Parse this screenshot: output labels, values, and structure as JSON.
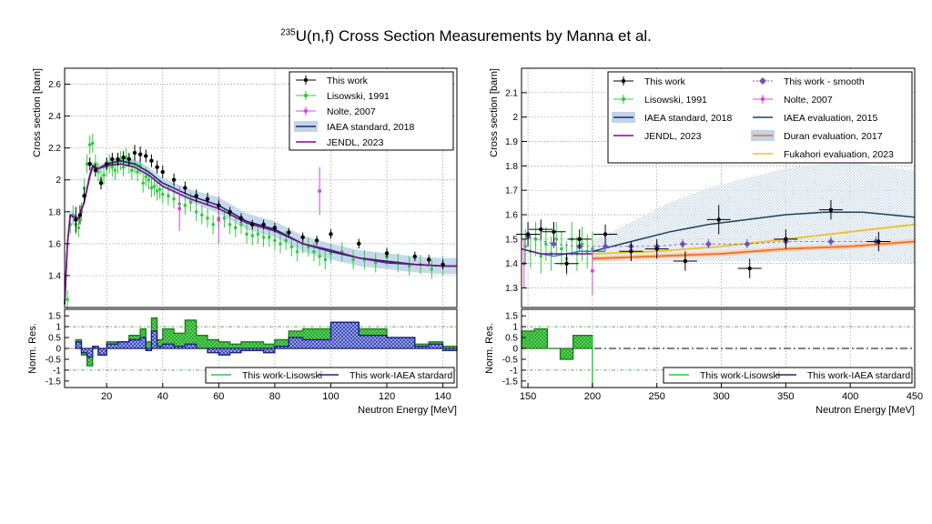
{
  "title": {
    "superscript": "235",
    "text": "U(n,f) Cross Section Measurements by Manna et al."
  },
  "colors": {
    "this_work": "#000000",
    "lisowski": "#2ecc40",
    "nolte": "#e040e0",
    "iaea_std": "#1a2a6e",
    "iaea_band": "#a8c8e0",
    "jendl": "#7a0a8a",
    "iaea_eval": "#1f3f5f",
    "duran": "#f07020",
    "fukahori": "#f0c020",
    "smooth": "#7050c0"
  },
  "chart_data": [
    {
      "type": "line",
      "panel": "left-top",
      "xlabel": "Neutron Energy [MeV]",
      "ylabel": "Cross section [barn]",
      "xlim": [
        5,
        145
      ],
      "ylim": [
        1.2,
        2.7
      ],
      "xticks": [
        20,
        40,
        60,
        80,
        100,
        120,
        140
      ],
      "yticks": [
        1.4,
        1.6,
        1.8,
        2,
        2.2,
        2.4,
        2.6
      ],
      "grid": true,
      "legend_position": "top-right",
      "legend": [
        "This work",
        "Lisowski, 1991",
        "Nolte, 2007",
        "IAEA standard, 2018",
        "JENDL, 2023"
      ],
      "series": [
        {
          "name": "This work",
          "kind": "points",
          "x": [
            9,
            10.5,
            12,
            14,
            16,
            18,
            20,
            22,
            24,
            26,
            28,
            30,
            32,
            34,
            36,
            38,
            40,
            44,
            48,
            52,
            56,
            60,
            64,
            68,
            72,
            76,
            80,
            85,
            90,
            95,
            100,
            110,
            120,
            130,
            135,
            140
          ],
          "y": [
            1.75,
            1.78,
            1.9,
            2.1,
            2.06,
            1.98,
            2.1,
            2.13,
            2.13,
            2.14,
            2.13,
            2.17,
            2.16,
            2.15,
            2.12,
            2.08,
            2.05,
            2.0,
            1.95,
            1.9,
            1.88,
            1.84,
            1.8,
            1.76,
            1.72,
            1.72,
            1.7,
            1.67,
            1.64,
            1.62,
            1.66,
            1.6,
            1.54,
            1.52,
            1.5,
            1.47
          ],
          "err": [
            0.08,
            0.06,
            0.05,
            0.04,
            0.04,
            0.04,
            0.04,
            0.04,
            0.04,
            0.04,
            0.04,
            0.05,
            0.05,
            0.04,
            0.04,
            0.04,
            0.04,
            0.04,
            0.04,
            0.04,
            0.04,
            0.03,
            0.03,
            0.03,
            0.03,
            0.03,
            0.03,
            0.03,
            0.03,
            0.03,
            0.03,
            0.03,
            0.03,
            0.03,
            0.03,
            0.03
          ]
        },
        {
          "name": "Lisowski, 1991",
          "kind": "points",
          "x": [
            6,
            7,
            8,
            9,
            10,
            11,
            12,
            13,
            14,
            15,
            16,
            17,
            18,
            19,
            20,
            21,
            22,
            23,
            24,
            25,
            26,
            27,
            28,
            29,
            30,
            31,
            32,
            33,
            34,
            35,
            36,
            37,
            38,
            39,
            40,
            42,
            44,
            46,
            48,
            50,
            52,
            54,
            56,
            58,
            60,
            62,
            64,
            66,
            68,
            70,
            72,
            74,
            76,
            78,
            80,
            82,
            84,
            86,
            88,
            90,
            92,
            94,
            96,
            98,
            100,
            104,
            108,
            112,
            116,
            120,
            124,
            128,
            132,
            136,
            140
          ],
          "y": [
            1.25,
            1.72,
            1.78,
            1.72,
            1.7,
            1.8,
            1.95,
            2.1,
            2.22,
            2.23,
            2.1,
            2.05,
            2.0,
            2.03,
            2.08,
            2.1,
            2.08,
            2.06,
            2.1,
            2.12,
            2.08,
            2.14,
            2.1,
            2.06,
            2.1,
            2.05,
            2.09,
            1.98,
            2.02,
            2.0,
            1.95,
            1.96,
            1.93,
            1.94,
            1.91,
            1.9,
            1.88,
            1.85,
            1.84,
            1.86,
            1.8,
            1.78,
            1.76,
            1.72,
            1.76,
            1.76,
            1.72,
            1.7,
            1.72,
            1.66,
            1.65,
            1.66,
            1.64,
            1.64,
            1.62,
            1.6,
            1.62,
            1.58,
            1.55,
            1.6,
            1.58,
            1.55,
            1.52,
            1.5,
            1.54,
            1.55,
            1.5,
            1.5,
            1.48,
            1.52,
            1.48,
            1.46,
            1.47,
            1.44,
            1.46
          ],
          "err": 0.06
        },
        {
          "name": "Nolte, 2007",
          "kind": "points",
          "x": [
            46,
            60,
            96
          ],
          "y": [
            1.82,
            1.75,
            1.93
          ],
          "err": [
            0.14,
            0.15,
            0.15
          ]
        },
        {
          "name": "IAEA standard, 2018",
          "kind": "line+band",
          "x": [
            5,
            6,
            7,
            8,
            10,
            12,
            14,
            15,
            17,
            20,
            25,
            30,
            35,
            40,
            50,
            60,
            70,
            80,
            90,
            100,
            110,
            120,
            130,
            140,
            145
          ],
          "y": [
            1.22,
            1.6,
            1.78,
            1.77,
            1.76,
            1.86,
            2.03,
            2.09,
            2.07,
            2.1,
            2.12,
            2.1,
            2.05,
            1.98,
            1.9,
            1.84,
            1.74,
            1.69,
            1.6,
            1.55,
            1.51,
            1.49,
            1.47,
            1.46,
            1.46
          ],
          "band_halfwidth": [
            0.02,
            0.02,
            0.02,
            0.02,
            0.02,
            0.02,
            0.02,
            0.02,
            0.02,
            0.02,
            0.02,
            0.03,
            0.03,
            0.03,
            0.04,
            0.05,
            0.05,
            0.05,
            0.05,
            0.05,
            0.05,
            0.05,
            0.05,
            0.05,
            0.05
          ]
        },
        {
          "name": "JENDL, 2023",
          "kind": "line",
          "x": [
            5,
            6,
            7,
            8,
            10,
            12,
            14,
            15,
            17,
            20,
            25,
            30,
            35,
            40,
            50,
            60,
            70,
            80,
            90,
            100,
            110,
            120,
            130,
            140,
            145
          ],
          "y": [
            1.22,
            1.6,
            1.78,
            1.77,
            1.76,
            1.86,
            2.02,
            2.08,
            2.07,
            2.09,
            2.1,
            2.08,
            2.03,
            1.96,
            1.88,
            1.82,
            1.73,
            1.68,
            1.6,
            1.56,
            1.51,
            1.48,
            1.47,
            1.46,
            1.46
          ]
        }
      ]
    },
    {
      "type": "area",
      "panel": "left-bottom",
      "xlabel": "Neutron Energy [MeV]",
      "ylabel": "Norm. Res.",
      "xlim": [
        5,
        145
      ],
      "ylim": [
        -1.8,
        1.8
      ],
      "yticks": [
        -1.5,
        -1,
        -0.5,
        0,
        0.5,
        1,
        1.5
      ],
      "legend_position": "bottom",
      "legend": [
        "This work-Lisowski",
        "This work-IAEA stardard"
      ],
      "reference_lines": [
        1,
        -1
      ],
      "series": [
        {
          "name": "This work-Lisowski",
          "edges": [
            9,
            11,
            13,
            15,
            17,
            20,
            24,
            28,
            32,
            34,
            36,
            38,
            40,
            44,
            48,
            52,
            56,
            60,
            64,
            68,
            76,
            80,
            85,
            90,
            100,
            110,
            120,
            130,
            135,
            140,
            145
          ],
          "values": [
            0.4,
            -0.3,
            -0.8,
            0.1,
            -0.3,
            0.3,
            0.3,
            0.6,
            0.9,
            0.3,
            1.4,
            0.4,
            0.9,
            0.7,
            1.3,
            0.6,
            0.4,
            0.3,
            0.2,
            0.3,
            0.2,
            0.4,
            0.8,
            0.9,
            1.2,
            0.9,
            0.5,
            0.2,
            0.3,
            0.1
          ]
        },
        {
          "name": "This work-IAEA stardard",
          "edges": [
            9,
            11,
            13,
            15,
            17,
            20,
            24,
            28,
            32,
            34,
            36,
            38,
            40,
            44,
            48,
            52,
            56,
            60,
            64,
            68,
            76,
            80,
            85,
            90,
            100,
            110,
            120,
            130,
            135,
            140,
            145
          ],
          "values": [
            0.3,
            -0.2,
            -0.4,
            0.1,
            -0.3,
            0.2,
            0.3,
            0.4,
            0.5,
            -0.1,
            0.8,
            0.1,
            0.2,
            0.1,
            0.2,
            0.0,
            -0.2,
            -0.3,
            -0.2,
            -0.1,
            -0.2,
            0.1,
            0.5,
            0.4,
            1.2,
            0.6,
            0.5,
            0.1,
            0.2,
            -0.1
          ]
        }
      ]
    },
    {
      "type": "line",
      "panel": "right-top",
      "xlabel": "Neutron Energy [MeV]",
      "ylabel": "Cross section [barn]",
      "xlim": [
        145,
        450
      ],
      "ylim": [
        1.22,
        2.2
      ],
      "xticks": [
        150,
        200,
        250,
        300,
        350,
        400,
        450
      ],
      "yticks": [
        1.3,
        1.4,
        1.5,
        1.6,
        1.7,
        1.8,
        1.9,
        2,
        2.1
      ],
      "grid": true,
      "legend_position": "top-right",
      "legend": [
        "This work",
        "This work - smooth",
        "Lisowski, 1991",
        "Nolte, 2007",
        "IAEA standard, 2018",
        "IAEA evaluation, 2015",
        "JENDL, 2023",
        "Duran evaluation, 2017",
        "Fukahori evaluation, 2023"
      ],
      "series": [
        {
          "name": "This work",
          "kind": "points",
          "x": [
            150,
            160,
            170,
            180,
            190,
            210,
            230,
            250,
            272,
            298,
            322,
            350,
            385,
            422
          ],
          "y": [
            1.52,
            1.54,
            1.53,
            1.4,
            1.5,
            1.52,
            1.45,
            1.46,
            1.41,
            1.58,
            1.38,
            1.5,
            1.62,
            1.49
          ],
          "err": [
            0.05,
            0.04,
            0.04,
            0.04,
            0.04,
            0.04,
            0.04,
            0.04,
            0.04,
            0.06,
            0.04,
            0.04,
            0.04,
            0.04
          ]
        },
        {
          "name": "This work - smooth",
          "kind": "points",
          "x": [
            150,
            170,
            190,
            210,
            230,
            250,
            270,
            290,
            320,
            350,
            385,
            420
          ],
          "y": [
            1.51,
            1.48,
            1.47,
            1.47,
            1.47,
            1.47,
            1.48,
            1.48,
            1.48,
            1.49,
            1.49,
            1.49
          ],
          "err": [
            0.02,
            0.02,
            0.02,
            0.02,
            0.02,
            0.02,
            0.02,
            0.02,
            0.02,
            0.02,
            0.02,
            0.02
          ]
        },
        {
          "name": "Lisowski, 1991",
          "kind": "points",
          "x": [
            148,
            152,
            156,
            160,
            164,
            168,
            172,
            176,
            180,
            184,
            188,
            192,
            196,
            200
          ],
          "y": [
            1.47,
            1.45,
            1.5,
            1.43,
            1.48,
            1.44,
            1.5,
            1.46,
            1.42,
            1.5,
            1.44,
            1.48,
            1.45,
            1.46
          ],
          "err": 0.07
        },
        {
          "name": "Nolte, 2007",
          "kind": "points",
          "x": [
            147,
            200
          ],
          "y": [
            1.4,
            1.37
          ],
          "err": [
            0.1,
            0.1
          ]
        },
        {
          "name": "IAEA standard, 2018",
          "kind": "line",
          "x": [
            145,
            160,
            170,
            180,
            190,
            200,
            210
          ],
          "y": [
            1.46,
            1.44,
            1.43,
            1.44,
            1.45,
            1.45,
            1.45
          ]
        },
        {
          "name": "IAEA evaluation, 2015",
          "kind": "line+band",
          "x": [
            200,
            230,
            260,
            290,
            320,
            350,
            380,
            410,
            450
          ],
          "y": [
            1.45,
            1.49,
            1.53,
            1.56,
            1.58,
            1.6,
            1.61,
            1.61,
            1.59
          ],
          "band_halfwidth": [
            0.04,
            0.08,
            0.12,
            0.15,
            0.17,
            0.19,
            0.2,
            0.2,
            0.19
          ]
        },
        {
          "name": "JENDL, 2023",
          "kind": "line",
          "x": [
            145,
            160,
            180,
            200
          ],
          "y": [
            1.46,
            1.44,
            1.44,
            1.44
          ]
        },
        {
          "name": "Duran evaluation, 2017",
          "kind": "line+band",
          "x": [
            200,
            250,
            300,
            350,
            400,
            450
          ],
          "y": [
            1.42,
            1.43,
            1.44,
            1.46,
            1.47,
            1.49
          ],
          "band_halfwidth": [
            0.01,
            0.01,
            0.01,
            0.01,
            0.01,
            0.01
          ]
        },
        {
          "name": "Fukahori evaluation, 2023",
          "kind": "line",
          "x": [
            200,
            250,
            300,
            350,
            400,
            450
          ],
          "y": [
            1.44,
            1.45,
            1.47,
            1.5,
            1.53,
            1.56
          ]
        }
      ]
    },
    {
      "type": "area",
      "panel": "right-bottom",
      "xlabel": "Neutron Energy [MeV]",
      "ylabel": "Norm. Res.",
      "xlim": [
        145,
        450
      ],
      "ylim": [
        -1.8,
        1.8
      ],
      "xticks": [
        150,
        200,
        250,
        300,
        350,
        400,
        450
      ],
      "yticks": [
        -1.5,
        -1,
        -0.5,
        0,
        0.5,
        1,
        1.5
      ],
      "legend_position": "bottom",
      "legend": [
        "This work-Lisowski",
        "This work-IAEA stardard"
      ],
      "reference_lines": [
        1,
        -1
      ],
      "series": [
        {
          "name": "This work-Lisowski",
          "edges": [
            145,
            155,
            165,
            175,
            185,
            200
          ],
          "values": [
            0.8,
            0.9,
            0.0,
            -0.5,
            0.6
          ]
        }
      ]
    }
  ]
}
